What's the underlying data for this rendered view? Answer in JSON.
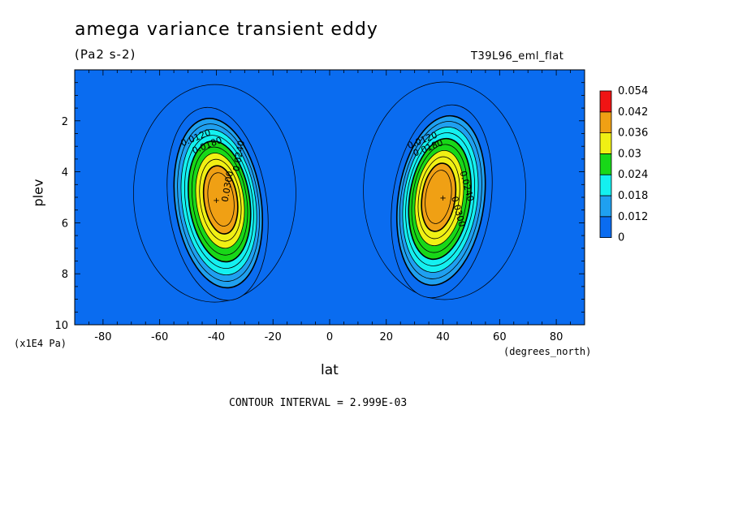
{
  "chart_data": {
    "type": "heatmap",
    "title": "amega variance transient eddy",
    "subtitle": "(Pa2 s-2)",
    "experiment": "T39L96_eml_flat",
    "xlabel": "lat",
    "ylabel": "plev",
    "x_unit": "(degrees_north)",
    "y_unit": "(x1E4 Pa)",
    "xlim": [
      -90,
      90
    ],
    "ylim": [
      10,
      0
    ],
    "x_ticks": [
      -80,
      -60,
      -40,
      -20,
      0,
      20,
      40,
      60,
      80
    ],
    "x_tick_labels": [
      "-80",
      "-60",
      "-40",
      "-20",
      "0",
      "20",
      "40",
      "60",
      "80"
    ],
    "y_ticks": [
      2,
      4,
      6,
      8,
      10
    ],
    "y_tick_labels": [
      "2",
      "4",
      "6",
      "8",
      "10"
    ],
    "contour_interval_text": "CONTOUR INTERVAL = 2.999E-03",
    "colorbar": {
      "levels": [
        "0",
        "0.012",
        "0.018",
        "0.024",
        "0.03",
        "0.036",
        "0.042",
        "0.054"
      ],
      "colors": [
        "#0a6cf0",
        "#1fa0f0",
        "#14f0f0",
        "#18d818",
        "#f0f014",
        "#f0a014",
        "#f01414"
      ]
    },
    "contour_levels": [
      0.003,
      0.006,
      0.009,
      0.012,
      0.015,
      0.018,
      0.021,
      0.024,
      0.027,
      0.03,
      0.033,
      0.036,
      0.039
    ],
    "maxima": [
      {
        "lat": -40,
        "plev": 5.1,
        "value": 0.041
      },
      {
        "lat": 40,
        "plev": 5.0,
        "value": 0.041
      }
    ],
    "contour_labels": [
      {
        "text": "0.0120",
        "lat": -52,
        "plev": 3.0
      },
      {
        "text": "0.0180",
        "lat": -48,
        "plev": 3.3
      },
      {
        "text": "0.0240",
        "lat": -32,
        "plev": 4.0
      },
      {
        "text": "0.0300",
        "lat": -36,
        "plev": 5.2
      },
      {
        "text": "0.0120",
        "lat": 28,
        "plev": 3.1
      },
      {
        "text": "0.0180",
        "lat": 30,
        "plev": 3.4
      },
      {
        "text": "0.0240",
        "lat": 46,
        "plev": 4.0
      },
      {
        "text": "0.0300",
        "lat": 43,
        "plev": 5.0
      }
    ]
  }
}
